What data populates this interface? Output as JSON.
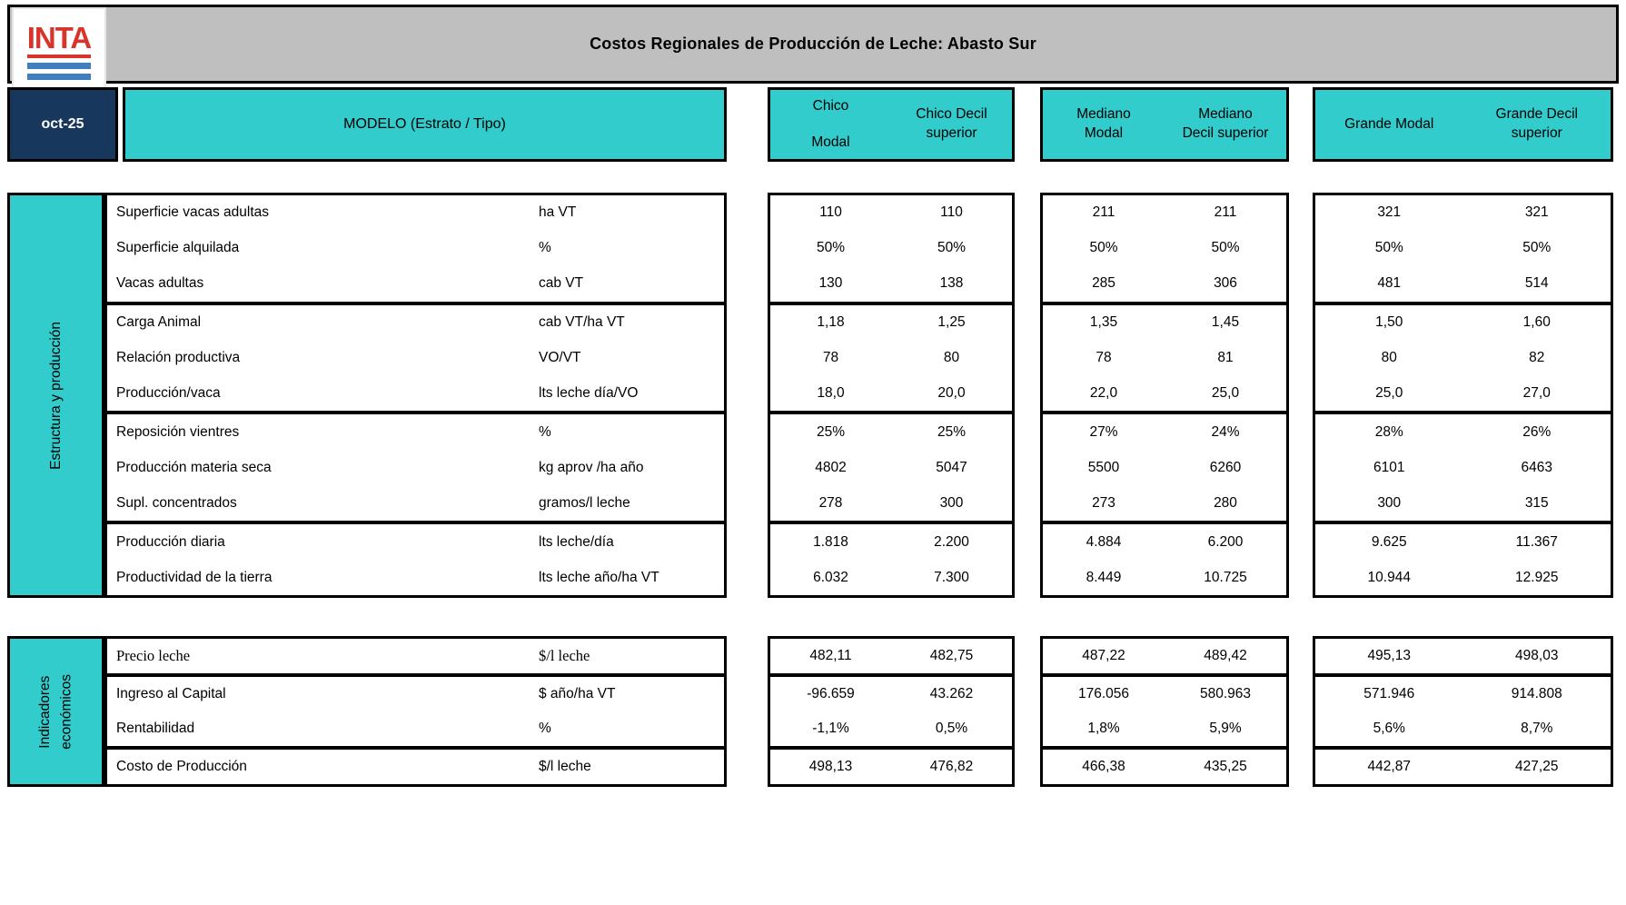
{
  "colors": {
    "teal": "#33CCCC",
    "navy": "#17375D",
    "title_bar_gray": "#BFBFBF",
    "logo_red": "#D9342B",
    "logo_blue": "#3F7EC0"
  },
  "logo": {
    "text": "INTA"
  },
  "header": {
    "title": "Costos Regionales de Producción de Leche: Abasto Sur",
    "date": "oct-25",
    "model_label": "MODELO (Estrato / Tipo)",
    "groups": [
      {
        "cols": [
          "Chico\nModal",
          "Chico Decil\nsuperior"
        ]
      },
      {
        "cols": [
          "Mediano\nModal",
          "Mediano\nDecil superior"
        ]
      },
      {
        "cols": [
          "Grande Modal",
          "Grande Decil\nsuperior"
        ]
      }
    ]
  },
  "sections": [
    {
      "side_label": "Estructura y producción",
      "rows": [
        {
          "label": "Superficie vacas adultas",
          "unit": "ha VT",
          "values": [
            "110",
            "110",
            "211",
            "211",
            "321",
            "321"
          ]
        },
        {
          "label": "Superficie alquilada",
          "unit": "%",
          "values": [
            "50%",
            "50%",
            "50%",
            "50%",
            "50%",
            "50%"
          ]
        },
        {
          "label": "Vacas adultas",
          "unit": "cab VT",
          "values": [
            "130",
            "138",
            "285",
            "306",
            "481",
            "514"
          ],
          "group_end": true
        },
        {
          "label": "Carga Animal",
          "unit": "cab VT/ha VT",
          "values": [
            "1,18",
            "1,25",
            "1,35",
            "1,45",
            "1,50",
            "1,60"
          ]
        },
        {
          "label": "Relación productiva",
          "unit": "VO/VT",
          "values": [
            "78",
            "80",
            "78",
            "81",
            "80",
            "82"
          ]
        },
        {
          "label": "Producción/vaca",
          "unit": "lts leche día/VO",
          "values": [
            "18,0",
            "20,0",
            "22,0",
            "25,0",
            "25,0",
            "27,0"
          ],
          "group_end": true
        },
        {
          "label": "Reposición vientres",
          "unit": "%",
          "values": [
            "25%",
            "25%",
            "27%",
            "24%",
            "28%",
            "26%"
          ]
        },
        {
          "label": "Producción materia seca",
          "unit": "kg aprov /ha año",
          "values": [
            "4802",
            "5047",
            "5500",
            "6260",
            "6101",
            "6463"
          ]
        },
        {
          "label": "Supl. concentrados",
          "unit": "gramos/l leche",
          "values": [
            "278",
            "300",
            "273",
            "280",
            "300",
            "315"
          ],
          "group_end": true
        },
        {
          "label": "Producción diaria",
          "unit": "lts leche/día",
          "values": [
            "1.818",
            "2.200",
            "4.884",
            "6.200",
            "9.625",
            "11.367"
          ]
        },
        {
          "label": "Productividad de la tierra",
          "unit": "lts leche año/ha VT",
          "values": [
            "6.032",
            "7.300",
            "8.449",
            "10.725",
            "10.944",
            "12.925"
          ]
        }
      ]
    },
    {
      "side_label": "Indicadores\neconómicos",
      "rows": [
        {
          "label": "Precio leche",
          "unit": "$/l leche",
          "values": [
            "482,11",
            "482,75",
            "487,22",
            "489,42",
            "495,13",
            "498,03"
          ],
          "serif": true,
          "group_end": true
        },
        {
          "label": "Ingreso al Capital",
          "unit": "$ año/ha VT",
          "values": [
            "-96.659",
            "43.262",
            "176.056",
            "580.963",
            "571.946",
            "914.808"
          ]
        },
        {
          "label": "Rentabilidad",
          "unit": "%",
          "values": [
            "-1,1%",
            "0,5%",
            "1,8%",
            "5,9%",
            "5,6%",
            "8,7%"
          ],
          "group_end": true
        },
        {
          "label": "Costo de Producción",
          "unit": "$/l leche",
          "values": [
            "498,13",
            "476,82",
            "466,38",
            "435,25",
            "442,87",
            "427,25"
          ]
        }
      ]
    }
  ]
}
